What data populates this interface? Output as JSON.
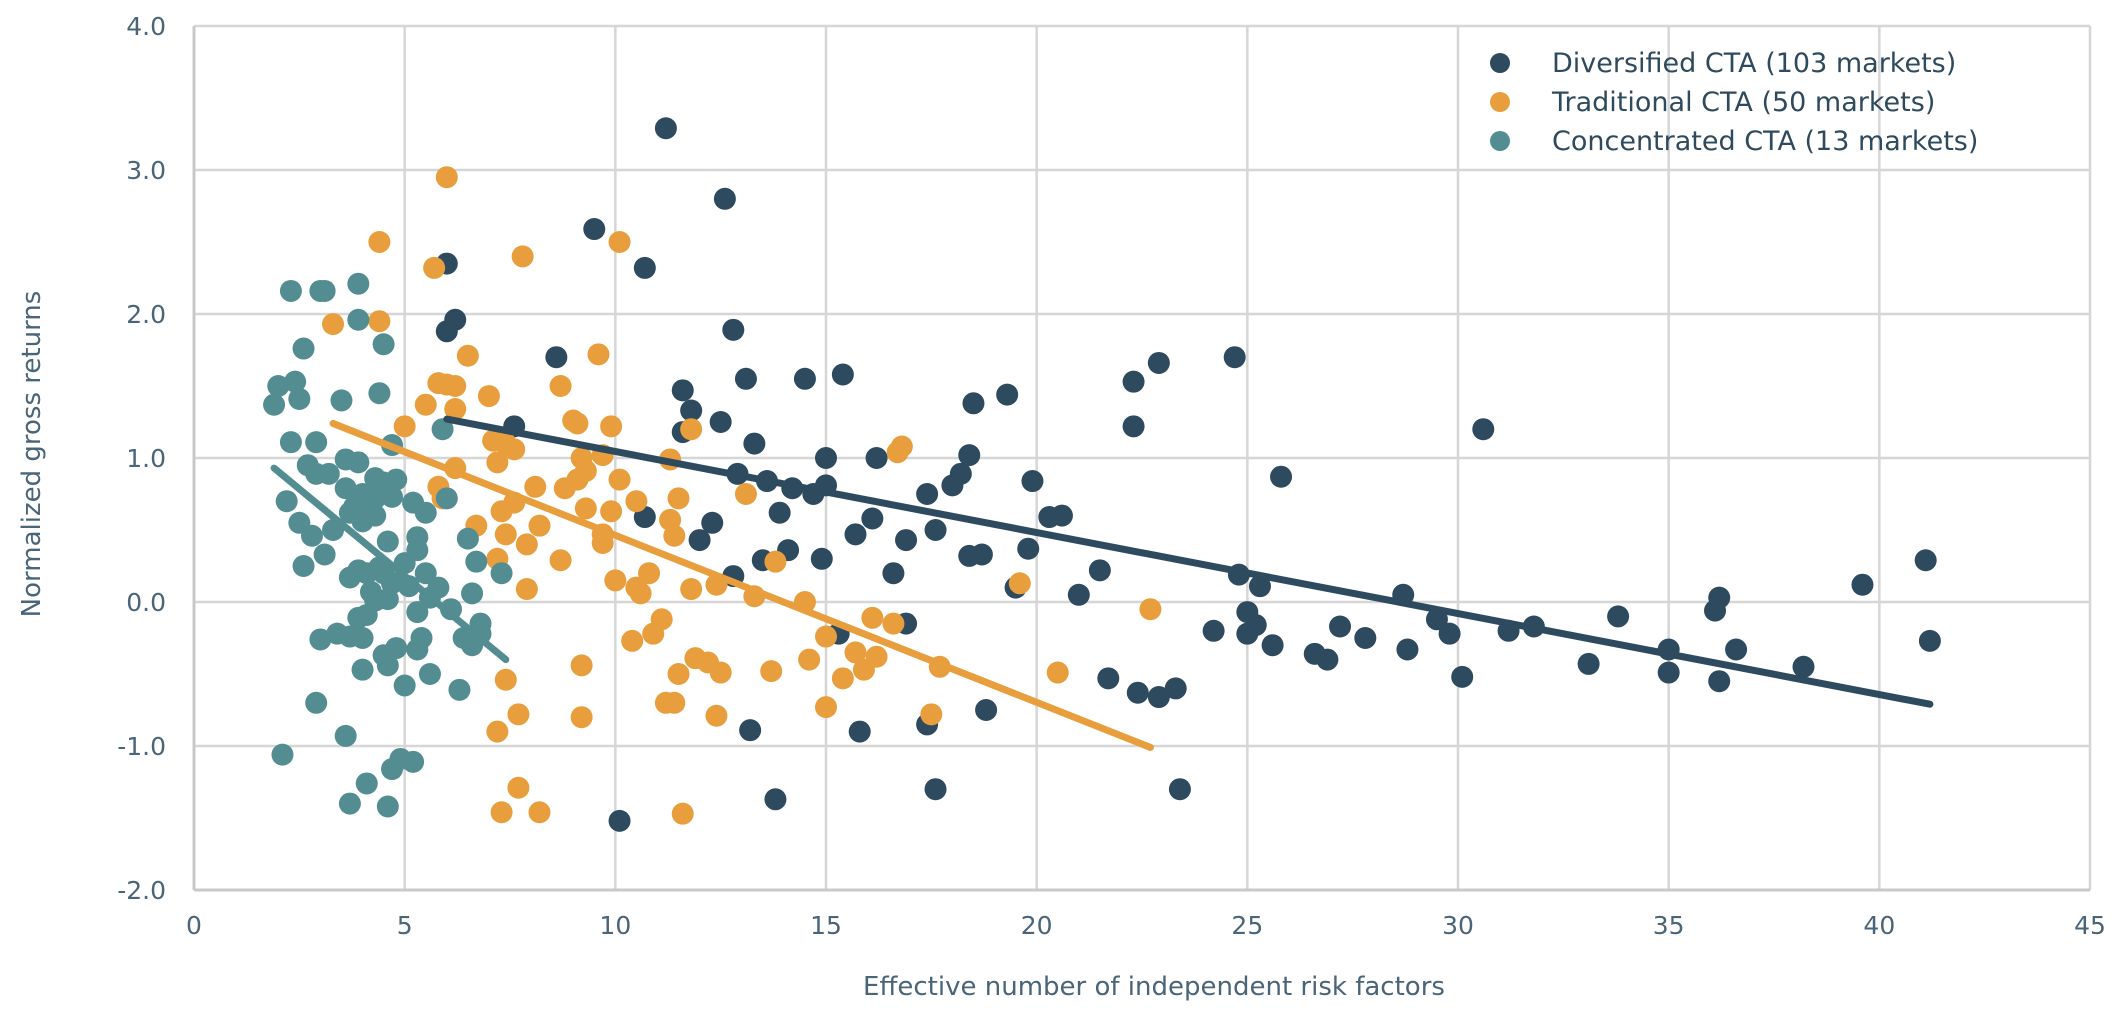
{
  "chart_data": {
    "type": "scatter",
    "title": "",
    "xlabel": "Effective number of independent risk factors",
    "ylabel": "Normalized gross returns",
    "xlim": [
      0,
      45
    ],
    "ylim": [
      -2.0,
      4.0
    ],
    "x_ticks": [
      "0",
      "5",
      "10",
      "15",
      "20",
      "25",
      "30",
      "35",
      "40",
      "45"
    ],
    "y_ticks": [
      "-2.0",
      "-1.0",
      "0.0",
      "1.0",
      "2.0",
      "3.0",
      "4.0"
    ],
    "grid": true,
    "legend_position": "top-right",
    "series": [
      {
        "name": "Diversified CTA (103 markets)",
        "color": "#2e4a5e",
        "trendline": [
          [
            6.0,
            1.27
          ],
          [
            41.2,
            -0.71
          ]
        ],
        "points": [
          [
            11.2,
            3.29
          ],
          [
            12.6,
            2.8
          ],
          [
            9.5,
            2.59
          ],
          [
            6.0,
            2.35
          ],
          [
            10.7,
            2.32
          ],
          [
            6.2,
            1.96
          ],
          [
            6.0,
            1.88
          ],
          [
            12.8,
            1.89
          ],
          [
            8.6,
            1.7
          ],
          [
            24.7,
            1.7
          ],
          [
            22.9,
            1.66
          ],
          [
            15.4,
            1.58
          ],
          [
            13.1,
            1.55
          ],
          [
            14.5,
            1.55
          ],
          [
            22.3,
            1.53
          ],
          [
            11.6,
            1.47
          ],
          [
            19.3,
            1.44
          ],
          [
            18.5,
            1.38
          ],
          [
            11.8,
            1.33
          ],
          [
            12.5,
            1.25
          ],
          [
            7.6,
            1.22
          ],
          [
            22.3,
            1.22
          ],
          [
            30.6,
            1.2
          ],
          [
            11.6,
            1.18
          ],
          [
            13.3,
            1.1
          ],
          [
            18.4,
            1.02
          ],
          [
            15.0,
            1.0
          ],
          [
            16.2,
            1.0
          ],
          [
            12.9,
            0.89
          ],
          [
            18.2,
            0.89
          ],
          [
            25.8,
            0.87
          ],
          [
            13.6,
            0.84
          ],
          [
            19.9,
            0.84
          ],
          [
            14.2,
            0.79
          ],
          [
            15.0,
            0.81
          ],
          [
            18.0,
            0.81
          ],
          [
            14.7,
            0.75
          ],
          [
            17.4,
            0.75
          ],
          [
            13.9,
            0.62
          ],
          [
            10.7,
            0.59
          ],
          [
            16.1,
            0.58
          ],
          [
            20.3,
            0.59
          ],
          [
            20.6,
            0.6
          ],
          [
            15.7,
            0.47
          ],
          [
            17.6,
            0.5
          ],
          [
            12.0,
            0.43
          ],
          [
            16.9,
            0.43
          ],
          [
            19.8,
            0.37
          ],
          [
            14.1,
            0.36
          ],
          [
            13.5,
            0.29
          ],
          [
            18.4,
            0.32
          ],
          [
            18.7,
            0.33
          ],
          [
            21.5,
            0.22
          ],
          [
            12.8,
            0.18
          ],
          [
            24.8,
            0.19
          ],
          [
            25.3,
            0.11
          ],
          [
            28.7,
            0.05
          ],
          [
            36.2,
            0.03
          ],
          [
            41.1,
            0.29
          ],
          [
            39.6,
            0.12
          ],
          [
            25.0,
            -0.07
          ],
          [
            25.2,
            -0.16
          ],
          [
            29.5,
            -0.12
          ],
          [
            24.2,
            -0.2
          ],
          [
            25.0,
            -0.22
          ],
          [
            27.2,
            -0.17
          ],
          [
            29.8,
            -0.22
          ],
          [
            31.2,
            -0.2
          ],
          [
            31.8,
            -0.17
          ],
          [
            36.1,
            -0.06
          ],
          [
            15.3,
            -0.22
          ],
          [
            16.9,
            -0.15
          ],
          [
            25.6,
            -0.3
          ],
          [
            26.6,
            -0.36
          ],
          [
            26.9,
            -0.4
          ],
          [
            28.8,
            -0.33
          ],
          [
            33.1,
            -0.43
          ],
          [
            35.0,
            -0.33
          ],
          [
            36.6,
            -0.33
          ],
          [
            41.2,
            -0.27
          ],
          [
            21.7,
            -0.53
          ],
          [
            30.1,
            -0.52
          ],
          [
            35.0,
            -0.49
          ],
          [
            36.2,
            -0.55
          ],
          [
            22.4,
            -0.63
          ],
          [
            22.9,
            -0.66
          ],
          [
            23.3,
            -0.6
          ],
          [
            18.8,
            -0.75
          ],
          [
            17.4,
            -0.85
          ],
          [
            13.2,
            -0.89
          ],
          [
            15.8,
            -0.9
          ],
          [
            17.6,
            -1.3
          ],
          [
            23.4,
            -1.3
          ],
          [
            13.8,
            -1.37
          ],
          [
            10.1,
            -1.52
          ],
          [
            12.3,
            0.55
          ],
          [
            14.9,
            0.3
          ],
          [
            16.6,
            0.2
          ],
          [
            19.5,
            0.1
          ],
          [
            21.0,
            0.05
          ],
          [
            27.8,
            -0.25
          ],
          [
            33.8,
            -0.1
          ],
          [
            38.2,
            -0.45
          ]
        ]
      },
      {
        "name": "Traditional CTA (50 markets)",
        "color": "#e99e3e",
        "trendline": [
          [
            3.3,
            1.24
          ],
          [
            22.7,
            -1.01
          ]
        ],
        "points": [
          [
            6.0,
            2.95
          ],
          [
            4.4,
            2.5
          ],
          [
            10.1,
            2.5
          ],
          [
            7.8,
            2.4
          ],
          [
            5.7,
            2.32
          ],
          [
            3.3,
            1.93
          ],
          [
            4.4,
            1.95
          ],
          [
            9.6,
            1.72
          ],
          [
            6.5,
            1.71
          ],
          [
            6.0,
            1.51
          ],
          [
            6.2,
            1.5
          ],
          [
            8.7,
            1.5
          ],
          [
            5.8,
            1.52
          ],
          [
            7.0,
            1.43
          ],
          [
            5.5,
            1.37
          ],
          [
            6.2,
            1.34
          ],
          [
            9.0,
            1.26
          ],
          [
            9.1,
            1.24
          ],
          [
            9.9,
            1.22
          ],
          [
            5.0,
            1.22
          ],
          [
            11.8,
            1.2
          ],
          [
            7.4,
            1.1
          ],
          [
            7.1,
            1.12
          ],
          [
            7.6,
            1.06
          ],
          [
            16.8,
            1.08
          ],
          [
            16.7,
            1.04
          ],
          [
            9.7,
            1.02
          ],
          [
            11.3,
            0.99
          ],
          [
            7.2,
            0.97
          ],
          [
            9.2,
            1.0
          ],
          [
            6.2,
            0.93
          ],
          [
            9.3,
            0.91
          ],
          [
            9.1,
            0.85
          ],
          [
            8.1,
            0.8
          ],
          [
            5.8,
            0.8
          ],
          [
            8.8,
            0.79
          ],
          [
            13.1,
            0.75
          ],
          [
            10.5,
            0.7
          ],
          [
            11.5,
            0.72
          ],
          [
            5.9,
            0.72
          ],
          [
            7.6,
            0.69
          ],
          [
            7.3,
            0.63
          ],
          [
            9.3,
            0.65
          ],
          [
            9.9,
            0.63
          ],
          [
            11.3,
            0.57
          ],
          [
            8.2,
            0.53
          ],
          [
            6.7,
            0.53
          ],
          [
            7.4,
            0.47
          ],
          [
            9.7,
            0.47
          ],
          [
            9.7,
            0.41
          ],
          [
            7.9,
            0.4
          ],
          [
            11.4,
            0.46
          ],
          [
            8.7,
            0.29
          ],
          [
            13.8,
            0.28
          ],
          [
            7.2,
            0.3
          ],
          [
            10.8,
            0.2
          ],
          [
            10.0,
            0.15
          ],
          [
            10.5,
            0.1
          ],
          [
            12.4,
            0.12
          ],
          [
            19.6,
            0.13
          ],
          [
            7.9,
            0.09
          ],
          [
            11.8,
            0.09
          ],
          [
            10.6,
            0.06
          ],
          [
            13.3,
            0.04
          ],
          [
            14.5,
            0.0
          ],
          [
            22.7,
            -0.05
          ],
          [
            11.1,
            -0.12
          ],
          [
            16.1,
            -0.11
          ],
          [
            16.6,
            -0.15
          ],
          [
            10.9,
            -0.22
          ],
          [
            10.4,
            -0.27
          ],
          [
            15.0,
            -0.24
          ],
          [
            15.7,
            -0.35
          ],
          [
            16.2,
            -0.38
          ],
          [
            14.6,
            -0.4
          ],
          [
            11.9,
            -0.39
          ],
          [
            12.2,
            -0.42
          ],
          [
            15.9,
            -0.47
          ],
          [
            9.2,
            -0.44
          ],
          [
            17.7,
            -0.45
          ],
          [
            13.7,
            -0.48
          ],
          [
            12.5,
            -0.49
          ],
          [
            11.5,
            -0.5
          ],
          [
            20.5,
            -0.49
          ],
          [
            7.4,
            -0.54
          ],
          [
            15.4,
            -0.53
          ],
          [
            11.2,
            -0.7
          ],
          [
            11.4,
            -0.7
          ],
          [
            15.0,
            -0.73
          ],
          [
            12.4,
            -0.79
          ],
          [
            9.2,
            -0.8
          ],
          [
            17.5,
            -0.78
          ],
          [
            7.7,
            -0.78
          ],
          [
            7.2,
            -0.9
          ],
          [
            7.7,
            -1.29
          ],
          [
            7.3,
            -1.46
          ],
          [
            8.2,
            -1.46
          ],
          [
            11.6,
            -1.47
          ],
          [
            10.1,
            0.85
          ]
        ]
      },
      {
        "name": "Concentrated CTA (13 markets)",
        "color": "#548d91",
        "trendline": [
          [
            1.9,
            0.93
          ],
          [
            7.4,
            -0.4
          ]
        ],
        "points": [
          [
            2.3,
            2.16
          ],
          [
            3.0,
            2.16
          ],
          [
            3.1,
            2.16
          ],
          [
            3.9,
            2.21
          ],
          [
            3.9,
            1.96
          ],
          [
            4.5,
            1.79
          ],
          [
            2.6,
            1.76
          ],
          [
            2.0,
            1.5
          ],
          [
            2.4,
            1.53
          ],
          [
            2.5,
            1.41
          ],
          [
            3.5,
            1.4
          ],
          [
            1.9,
            1.37
          ],
          [
            4.4,
            1.45
          ],
          [
            5.9,
            1.2
          ],
          [
            2.3,
            1.11
          ],
          [
            2.9,
            1.11
          ],
          [
            4.7,
            1.09
          ],
          [
            2.7,
            0.95
          ],
          [
            3.6,
            0.99
          ],
          [
            3.9,
            0.97
          ],
          [
            2.9,
            0.89
          ],
          [
            3.2,
            0.89
          ],
          [
            4.3,
            0.86
          ],
          [
            4.5,
            0.83
          ],
          [
            4.8,
            0.85
          ],
          [
            3.6,
            0.79
          ],
          [
            4.0,
            0.75
          ],
          [
            4.3,
            0.72
          ],
          [
            4.7,
            0.73
          ],
          [
            5.2,
            0.69
          ],
          [
            6.0,
            0.72
          ],
          [
            3.8,
            0.66
          ],
          [
            3.7,
            0.62
          ],
          [
            4.1,
            0.62
          ],
          [
            4.3,
            0.6
          ],
          [
            5.5,
            0.62
          ],
          [
            2.5,
            0.55
          ],
          [
            4.0,
            0.56
          ],
          [
            2.8,
            0.46
          ],
          [
            5.3,
            0.45
          ],
          [
            6.5,
            0.44
          ],
          [
            4.6,
            0.42
          ],
          [
            3.1,
            0.33
          ],
          [
            5.3,
            0.36
          ],
          [
            6.7,
            0.28
          ],
          [
            5.0,
            0.27
          ],
          [
            4.4,
            0.24
          ],
          [
            3.9,
            0.22
          ],
          [
            4.1,
            0.2
          ],
          [
            4.5,
            0.2
          ],
          [
            5.5,
            0.2
          ],
          [
            7.3,
            0.2
          ],
          [
            3.7,
            0.17
          ],
          [
            4.7,
            0.13
          ],
          [
            4.2,
            0.07
          ],
          [
            5.1,
            0.11
          ],
          [
            6.6,
            0.06
          ],
          [
            4.3,
            0.01
          ],
          [
            4.6,
            0.02
          ],
          [
            5.6,
            0.03
          ],
          [
            3.9,
            -0.11
          ],
          [
            4.1,
            -0.09
          ],
          [
            5.3,
            -0.07
          ],
          [
            6.8,
            -0.15
          ],
          [
            3.4,
            -0.22
          ],
          [
            3.7,
            -0.24
          ],
          [
            4.0,
            -0.25
          ],
          [
            3.0,
            -0.26
          ],
          [
            5.4,
            -0.25
          ],
          [
            6.4,
            -0.25
          ],
          [
            6.6,
            -0.3
          ],
          [
            6.8,
            -0.22
          ],
          [
            4.5,
            -0.37
          ],
          [
            4.8,
            -0.32
          ],
          [
            5.3,
            -0.33
          ],
          [
            4.6,
            -0.44
          ],
          [
            4.0,
            -0.47
          ],
          [
            5.6,
            -0.5
          ],
          [
            5.0,
            -0.58
          ],
          [
            6.3,
            -0.61
          ],
          [
            2.9,
            -0.7
          ],
          [
            3.6,
            -0.93
          ],
          [
            2.1,
            -1.06
          ],
          [
            4.9,
            -1.09
          ],
          [
            5.2,
            -1.11
          ],
          [
            4.7,
            -1.16
          ],
          [
            4.1,
            -1.26
          ],
          [
            3.7,
            -1.4
          ],
          [
            4.6,
            -1.42
          ],
          [
            2.2,
            0.7
          ],
          [
            3.3,
            0.5
          ],
          [
            5.8,
            0.1
          ],
          [
            6.1,
            -0.05
          ],
          [
            2.6,
            0.25
          ]
        ]
      }
    ]
  }
}
